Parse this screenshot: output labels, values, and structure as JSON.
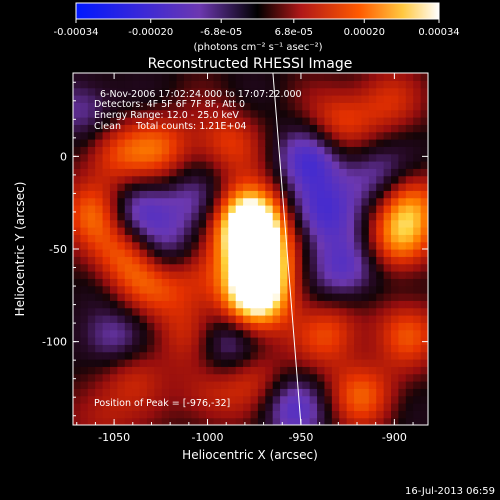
{
  "chart_data": {
    "type": "heatmap",
    "title": "Reconstructed RHESSI Image",
    "xlabel": "Heliocentric X (arcsec)",
    "ylabel": "Heliocentric Y (arcsec)",
    "xlim": [
      -1072,
      -882
    ],
    "ylim": [
      -145,
      45
    ],
    "x_ticks": [
      -1050,
      -1000,
      -950,
      -900
    ],
    "y_ticks": [
      0,
      -50,
      -100
    ],
    "grid": false,
    "colorbar": {
      "position": "top",
      "range": [
        -0.00034,
        0.00034
      ],
      "ticks": [
        "-0.00034",
        "-0.00020",
        "-6.8e-05",
        "6.8e-05",
        "0.00020",
        "0.00034"
      ],
      "tick_values": [
        -0.00034,
        -0.0002,
        -6.8e-05,
        6.8e-05,
        0.0002,
        0.00034
      ],
      "label": "(photons cm⁻² s⁻¹ asec⁻²)",
      "colors": [
        "#0000ff",
        "#5a2bb0",
        "#7a3aa8",
        "#000000",
        "#b01010",
        "#ff4a00",
        "#ffcf40",
        "#ffffff"
      ]
    },
    "annotations": [
      "6-Nov-2006 17:02:24.000 to 17:07:22.000",
      "Detectors: 4F 5F 6F 7F 8F, Att 0",
      "Energy Range: 12.0 - 25.0 keV",
      "Clean     Total counts: 1.21E+04"
    ],
    "peak_label": "Position of Peak = [-976,-32]",
    "peak": [
      -976,
      -32
    ],
    "limb_line": [
      [
        -965,
        45
      ],
      [
        -950,
        -145
      ]
    ],
    "sources": [
      {
        "x": -978,
        "y": -32,
        "v": 1.0
      },
      {
        "x": -975,
        "y": -45,
        "v": 0.85
      },
      {
        "x": -972,
        "y": -62,
        "v": 0.75
      },
      {
        "x": -975,
        "y": -78,
        "v": 0.9
      },
      {
        "x": -1010,
        "y": -62,
        "v": 0.55
      },
      {
        "x": -1030,
        "y": -68,
        "v": 0.45
      },
      {
        "x": -1045,
        "y": -52,
        "v": 0.5
      },
      {
        "x": -1060,
        "y": -30,
        "v": 0.55
      },
      {
        "x": -1050,
        "y": 2,
        "v": 0.45
      },
      {
        "x": -1025,
        "y": 5,
        "v": 0.45
      },
      {
        "x": -990,
        "y": 8,
        "v": 0.4
      },
      {
        "x": -1040,
        "y": -115,
        "v": 0.4
      },
      {
        "x": -1010,
        "y": -95,
        "v": 0.35
      },
      {
        "x": -975,
        "y": -118,
        "v": 0.4
      },
      {
        "x": -935,
        "y": -95,
        "v": 0.45
      },
      {
        "x": -918,
        "y": -128,
        "v": 0.5
      },
      {
        "x": -893,
        "y": -95,
        "v": 0.45
      },
      {
        "x": -898,
        "y": -45,
        "v": 0.6
      },
      {
        "x": -892,
        "y": -25,
        "v": 0.55
      },
      {
        "x": -930,
        "y": 18,
        "v": 0.45
      },
      {
        "x": -905,
        "y": 30,
        "v": 0.35
      },
      {
        "x": -1058,
        "y": -140,
        "v": 0.3
      },
      {
        "x": -1000,
        "y": -130,
        "v": 0.3
      },
      {
        "x": -1020,
        "y": -55,
        "v": -0.6
      },
      {
        "x": -1040,
        "y": -30,
        "v": -0.5
      },
      {
        "x": -940,
        "y": -30,
        "v": -0.55
      },
      {
        "x": -925,
        "y": -60,
        "v": -0.5
      },
      {
        "x": -1005,
        "y": -25,
        "v": -0.4
      },
      {
        "x": -945,
        "y": 0,
        "v": -0.5
      },
      {
        "x": -1050,
        "y": -100,
        "v": -0.45
      },
      {
        "x": -990,
        "y": -100,
        "v": -0.5
      },
      {
        "x": -955,
        "y": -135,
        "v": -0.45
      },
      {
        "x": -910,
        "y": -10,
        "v": -0.4
      },
      {
        "x": -1065,
        "y": 25,
        "v": -0.35
      }
    ]
  },
  "footer": {
    "timestamp": "16-Jul-2013 06:59"
  }
}
